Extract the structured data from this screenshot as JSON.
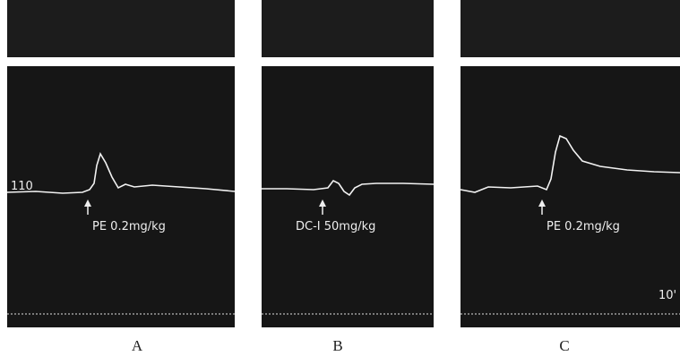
{
  "panels": [
    {
      "label": "A",
      "annotation": "PE 0.2mg/kg",
      "scale_label": "110"
    },
    {
      "label": "B",
      "annotation": "DC-I 50mg/kg"
    },
    {
      "label": "C",
      "annotation": "PE 0.2mg/kg",
      "time_label": "10'"
    }
  ]
}
